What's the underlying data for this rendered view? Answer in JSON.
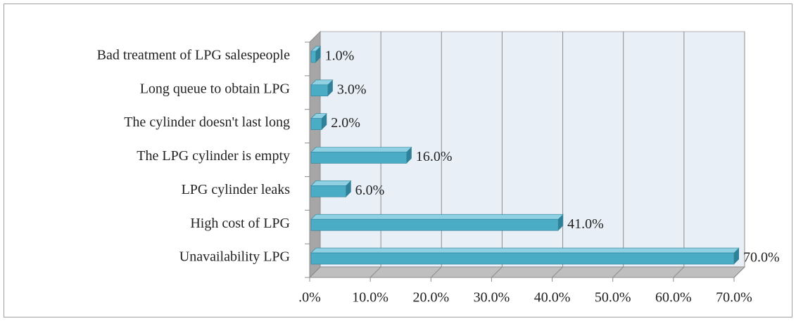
{
  "chart_data": {
    "type": "bar",
    "orientation": "horizontal",
    "three_d": true,
    "categories": [
      "Bad treatment of LPG salespeople",
      "Long queue to obtain LPG",
      "The cylinder doesn't last long",
      "The LPG cylinder is empty",
      "LPG cylinder leaks",
      "High cost of LPG",
      "Unavailability LPG"
    ],
    "values": [
      1,
      3,
      2,
      16,
      6,
      41,
      70
    ],
    "value_labels": [
      "1.0%",
      "3.0%",
      "2.0%",
      "16.0%",
      "6.0%",
      "41.0%",
      "70.0%"
    ],
    "color": "#4bacc6",
    "xlim": [
      0,
      70
    ],
    "xticks": [
      {
        "value": 0,
        "label": ".0%"
      },
      {
        "value": 10,
        "label": "10.0%"
      },
      {
        "value": 20,
        "label": "20.0%"
      },
      {
        "value": 30,
        "label": "30.0%"
      },
      {
        "value": 40,
        "label": "40.0%"
      },
      {
        "value": 50,
        "label": "50.0%"
      },
      {
        "value": 60,
        "label": "60.0%"
      },
      {
        "value": 70,
        "label": "70.0%"
      }
    ],
    "grid": true
  }
}
